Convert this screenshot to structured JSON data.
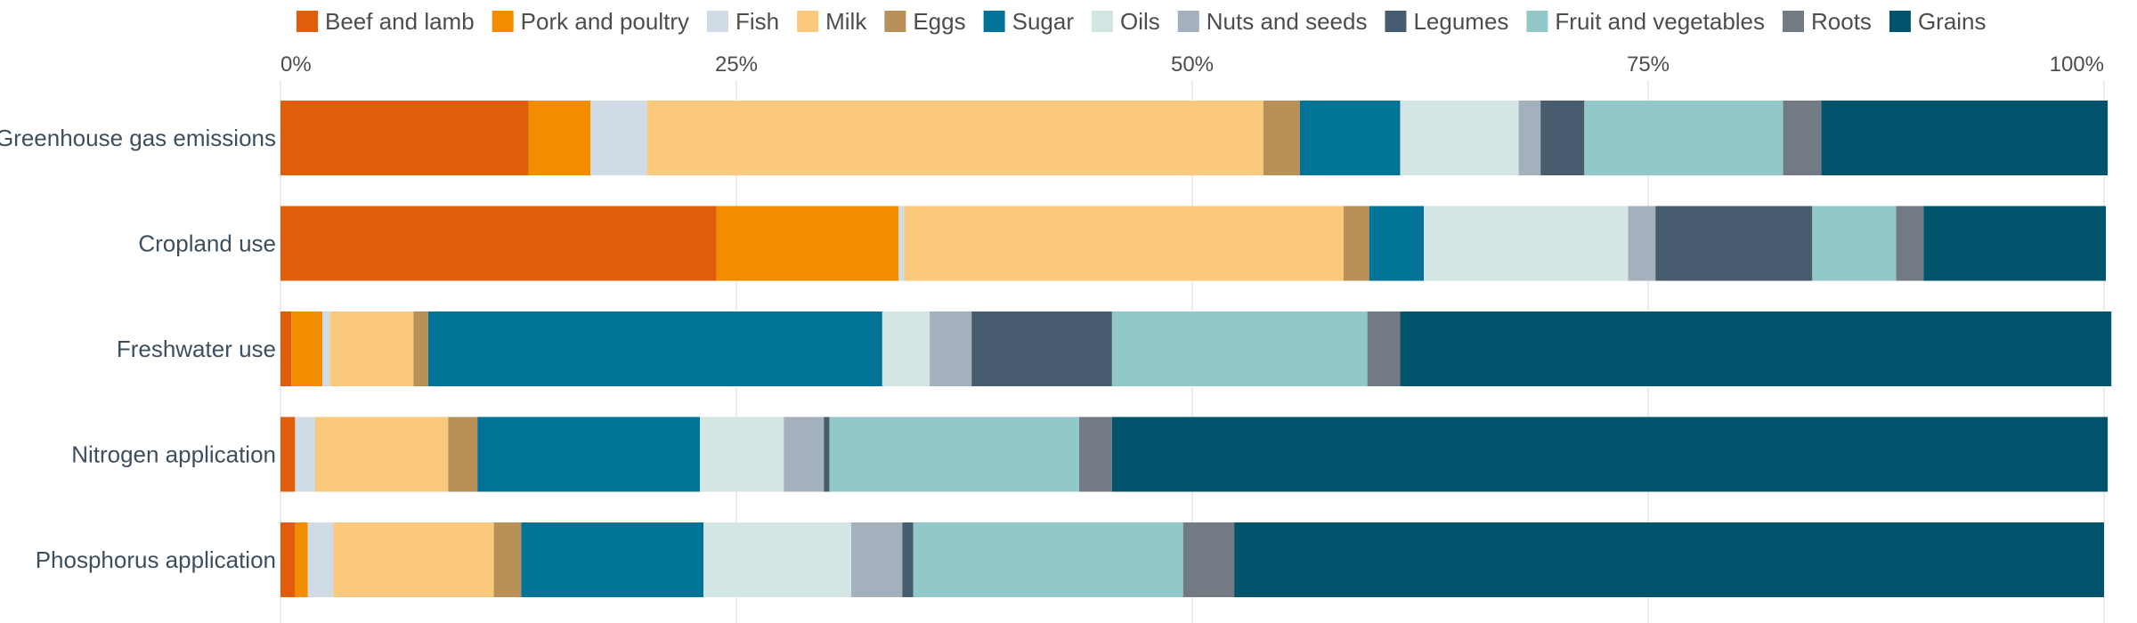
{
  "chart_data": {
    "type": "bar",
    "orientation": "horizontal",
    "stacked": true,
    "xlim": [
      0,
      100
    ],
    "x_ticks": [
      "0%",
      "25%",
      "50%",
      "75%",
      "100%"
    ],
    "x_tick_values": [
      0,
      25,
      50,
      75,
      100
    ],
    "grid": true,
    "legend_position": "top",
    "categories": [
      "Greenhouse gas emissions",
      "Cropland use",
      "Freshwater use",
      "Nitrogen application",
      "Phosphorus application"
    ],
    "series": [
      {
        "name": "Beef and lamb",
        "color": "#e05e0b",
        "values": [
          13.6,
          23.9,
          0.6,
          0.8,
          0.8
        ]
      },
      {
        "name": "Pork and poultry",
        "color": "#f28d00",
        "values": [
          3.4,
          10.0,
          1.7,
          0.0,
          0.7
        ]
      },
      {
        "name": "Fish",
        "color": "#d0dbe5",
        "values": [
          3.1,
          0.3,
          0.4,
          1.1,
          1.4
        ]
      },
      {
        "name": "Milk",
        "color": "#fbc97b",
        "values": [
          33.8,
          24.1,
          4.6,
          7.3,
          8.8
        ]
      },
      {
        "name": "Eggs",
        "color": "#b89058",
        "values": [
          2.0,
          1.4,
          0.8,
          1.6,
          1.5
        ]
      },
      {
        "name": "Sugar",
        "color": "#007396",
        "values": [
          5.5,
          3.0,
          24.9,
          12.2,
          10.0
        ]
      },
      {
        "name": "Oils",
        "color": "#d3e6e4",
        "values": [
          6.5,
          11.2,
          2.6,
          4.6,
          8.1
        ]
      },
      {
        "name": "Nuts and seeds",
        "color": "#a4b1bd",
        "values": [
          1.2,
          1.5,
          2.3,
          2.2,
          2.8
        ]
      },
      {
        "name": "Legumes",
        "color": "#475c6e",
        "values": [
          2.4,
          8.6,
          7.7,
          0.3,
          0.6
        ]
      },
      {
        "name": "Fruit and vegetables",
        "color": "#93c8c8",
        "values": [
          10.9,
          4.6,
          14.0,
          13.7,
          14.8
        ]
      },
      {
        "name": "Roots",
        "color": "#727b84",
        "values": [
          2.1,
          1.5,
          1.8,
          1.8,
          2.8
        ]
      },
      {
        "name": "Grains",
        "color": "#02536c",
        "values": [
          15.7,
          10.0,
          39.0,
          54.6,
          47.7
        ]
      }
    ]
  }
}
